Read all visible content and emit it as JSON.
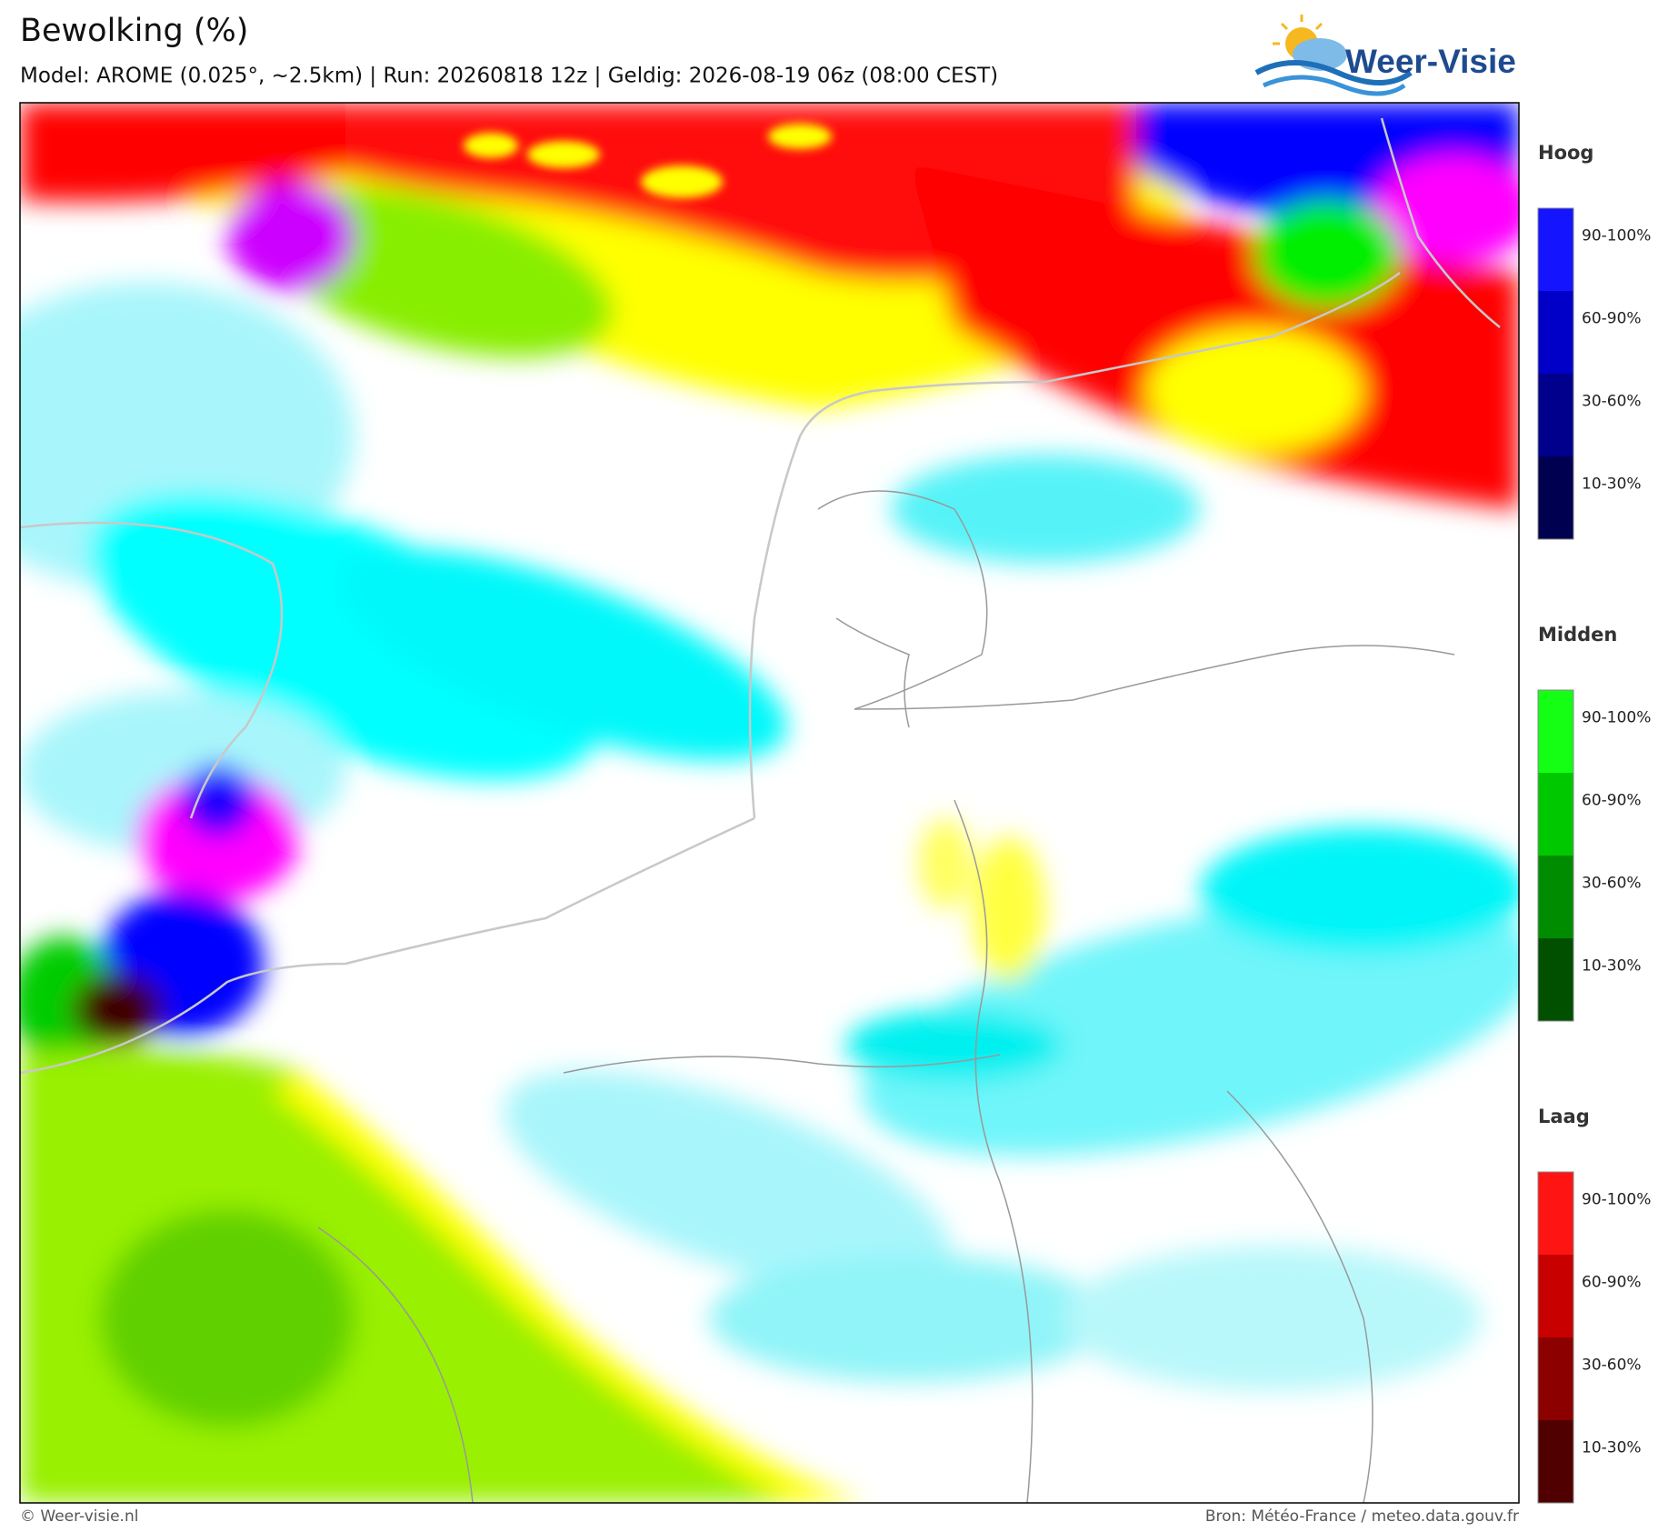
{
  "header": {
    "title": "Bewolking (%)",
    "subtitle": "Model: AROME (0.025°, ~2.5km)  |  Run: 20260818 12z  |  Geldig: 2026-08-19 06z (08:00 CEST)",
    "logo": "Weer-Visie"
  },
  "legends": [
    {
      "title": "Hoog",
      "items": [
        {
          "label": "90-100%",
          "color": "#1414ff"
        },
        {
          "label": "60-90%",
          "color": "#0000c8"
        },
        {
          "label": "30-60%",
          "color": "#00008c"
        },
        {
          "label": "10-30%",
          "color": "#000050"
        }
      ]
    },
    {
      "title": "Midden",
      "items": [
        {
          "label": "90-100%",
          "color": "#14ff14"
        },
        {
          "label": "60-90%",
          "color": "#00c800"
        },
        {
          "label": "30-60%",
          "color": "#008c00"
        },
        {
          "label": "10-30%",
          "color": "#005000"
        }
      ]
    },
    {
      "title": "Laag",
      "items": [
        {
          "label": "90-100%",
          "color": "#ff1414"
        },
        {
          "label": "60-90%",
          "color": "#c80000"
        },
        {
          "label": "30-60%",
          "color": "#8c0000"
        },
        {
          "label": "10-30%",
          "color": "#500000"
        }
      ]
    }
  ],
  "footer": {
    "copyright": "© Weer-visie.nl",
    "source": "Bron: Météo-France / meteo.data.gouv.fr"
  }
}
